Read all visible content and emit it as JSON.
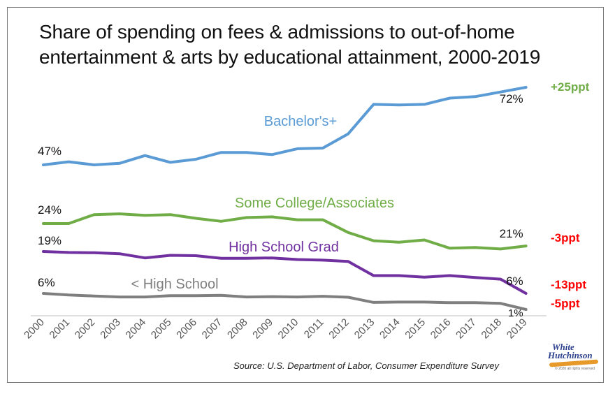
{
  "title_lines": [
    "Share of spending on fees & admissions to out-of-home",
    "entertainment & arts by educational attainment, 2000-2019"
  ],
  "source": "Source: U.S. Department of Labor, Consumer Expenditure Survey",
  "logo": {
    "line1": "White",
    "line2": "Hutchinson",
    "small": "© 2020 all rights reserved"
  },
  "chart_data": {
    "type": "line",
    "x": [
      "2000",
      "2001",
      "2002",
      "2003",
      "2004",
      "2005",
      "2006",
      "2007",
      "2008",
      "2009",
      "2010",
      "2011",
      "2012",
      "2013",
      "2014",
      "2015",
      "2016",
      "2017",
      "2018",
      "2019"
    ],
    "series": [
      {
        "name": "Bachelor's+",
        "color": "#5b9bd5",
        "values": [
          47,
          48,
          47,
          47.5,
          50,
          47.8,
          48.8,
          51,
          51,
          50.3,
          52.2,
          52.4,
          57,
          66.5,
          66.3,
          66.5,
          68.5,
          69,
          70.5,
          72
        ],
        "start_label": "47%",
        "end_label": "72%",
        "change": "+25ppt",
        "change_color": "#70ad47"
      },
      {
        "name": "Some College/Associates",
        "color": "#70ad47",
        "values": [
          24,
          24,
          25.2,
          25.3,
          25.1,
          25.2,
          24.7,
          24.3,
          24.8,
          24.9,
          24.5,
          24.5,
          22.8,
          21.7,
          21.5,
          21.8,
          20.7,
          20.8,
          20.6,
          21
        ],
        "start_label": "24%",
        "end_label": "21%",
        "change": "-3ppt",
        "change_color": "#ff0000"
      },
      {
        "name": "High School Grad",
        "color": "#7030a0",
        "values": [
          19,
          18.7,
          18.6,
          18.3,
          17,
          17.8,
          17.7,
          16.9,
          16.9,
          17,
          16.5,
          16.3,
          15.9,
          11.5,
          11.5,
          11,
          11.5,
          10.9,
          10.4,
          6
        ],
        "start_label": "19%",
        "end_label": "6%",
        "change": "-13ppt",
        "change_color": "#ff0000"
      },
      {
        "name": "< High School",
        "color": "#7f7f7f",
        "values": [
          6,
          5.5,
          5.2,
          4.9,
          4.9,
          5.3,
          5.3,
          5.4,
          4.9,
          5,
          4.9,
          5.1,
          4.8,
          3.2,
          3.3,
          3.3,
          3.1,
          3.1,
          2.9,
          1
        ],
        "start_label": "6%",
        "end_label": "1%",
        "change": "-5ppt",
        "change_color": "#ff0000"
      }
    ],
    "grid": false,
    "legend": "inline labels"
  }
}
